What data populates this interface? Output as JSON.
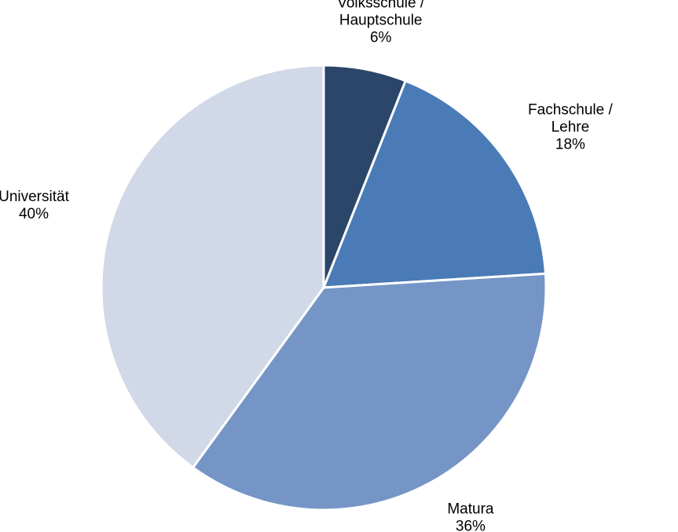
{
  "chart_data": {
    "type": "pie",
    "categories": [
      "Volksschule / Hauptschule",
      "Fachschule / Lehre",
      "Matura",
      "Universität"
    ],
    "values": [
      6,
      18,
      36,
      40
    ],
    "value_labels": [
      "6%",
      "18%",
      "36%",
      "40%"
    ],
    "colors": [
      "#2b4669",
      "#4a7bb6",
      "#7595c6",
      "#d1d8e7"
    ]
  }
}
